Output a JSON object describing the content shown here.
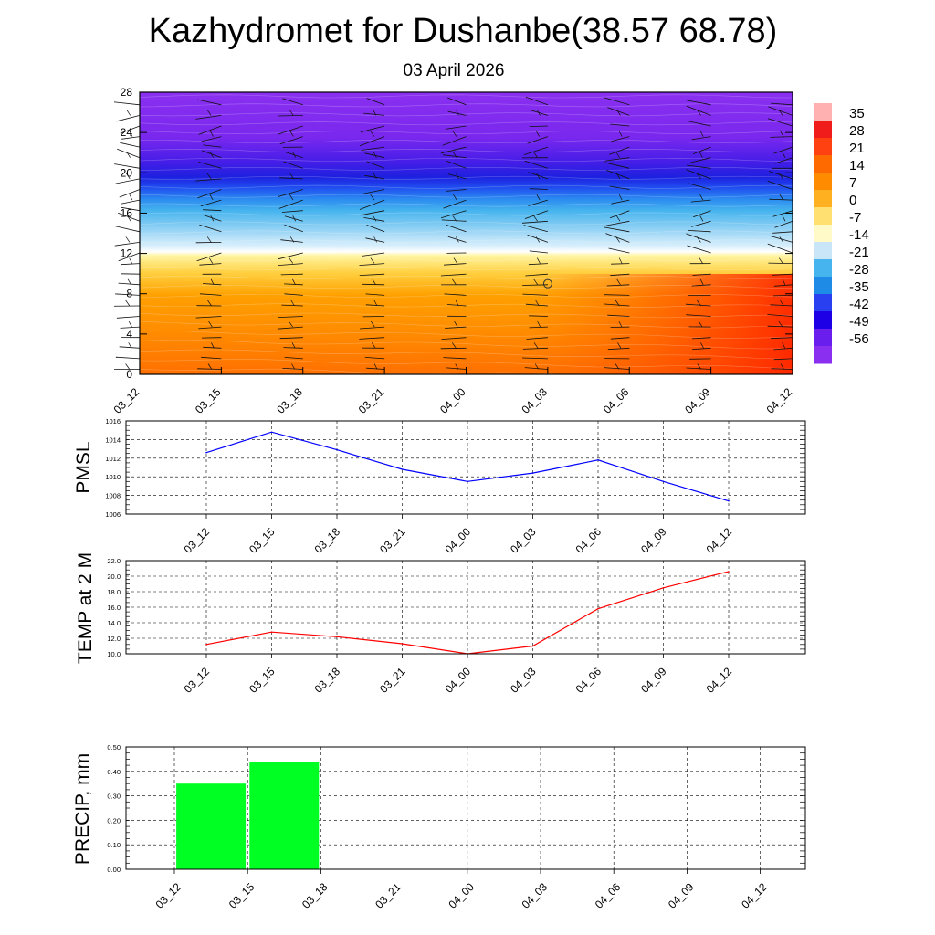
{
  "header": {
    "title": "Kazhydromet for Dushanbe(38.57 68.78)",
    "date": "03 April 2026"
  },
  "chart_data": [
    {
      "type": "heatmap",
      "name": "temperature cross-section",
      "x_categories": [
        "03_12",
        "03_15",
        "03_18",
        "03_21",
        "04_00",
        "04_03",
        "04_06",
        "04_09",
        "04_12"
      ],
      "y_ticks": [
        0,
        4,
        8,
        12,
        16,
        20,
        24,
        28
      ],
      "ylim": [
        0,
        28
      ],
      "colorbar_labels": [
        "35",
        "28",
        "21",
        "14",
        "7",
        "0",
        "-7",
        "-14",
        "-21",
        "-28",
        "-35",
        "-42",
        "-49",
        "-56"
      ],
      "colorbar_colors": [
        "#ffb0b0",
        "#f01c1c",
        "#ff4010",
        "#ff6a00",
        "#ff8c00",
        "#ffb020",
        "#ffe070",
        "#fffac8",
        "#c8e6f8",
        "#46b4ee",
        "#1e8ce6",
        "#2840f0",
        "#1e00e6",
        "#6a1eee",
        "#8a2ef0"
      ],
      "overlay": "wind barbs",
      "calm_circle": {
        "x": "04_03",
        "y": 9
      }
    },
    {
      "type": "line",
      "ylabel": "PMSL",
      "x_categories": [
        "03_12",
        "03_15",
        "03_18",
        "03_21",
        "04_00",
        "04_03",
        "04_06",
        "04_09",
        "04_12"
      ],
      "values": [
        1012.6,
        1014.8,
        1012.9,
        1010.8,
        1009.5,
        1010.4,
        1011.8,
        1009.5,
        1007.4
      ],
      "ylim": [
        1006,
        1016
      ],
      "y_ticks": [
        "1006",
        "1008",
        "1010",
        "1012",
        "1014",
        "1016"
      ],
      "color": "#0000ff",
      "grid": true
    },
    {
      "type": "line",
      "ylabel": "TEMP at 2 M",
      "x_categories": [
        "03_12",
        "03_15",
        "03_18",
        "03_21",
        "04_00",
        "04_03",
        "04_06",
        "04_09",
        "04_12"
      ],
      "values": [
        11.2,
        12.8,
        12.2,
        11.3,
        10.0,
        11.0,
        15.8,
        18.5,
        20.6
      ],
      "ylim": [
        10,
        22
      ],
      "y_ticks": [
        "10.0",
        "12.0",
        "14.0",
        "16.0",
        "18.0",
        "20.0",
        "22.0"
      ],
      "color": "#ff0000",
      "grid": true
    },
    {
      "type": "bar",
      "ylabel": "PRECIP, mm",
      "x_categories": [
        "03_12",
        "03_15",
        "03_18",
        "03_21",
        "04_00",
        "04_03",
        "04_06",
        "04_09",
        "04_12"
      ],
      "values": [
        0,
        0.35,
        0.44,
        0,
        0,
        0,
        0,
        0,
        0
      ],
      "ylim": [
        0,
        0.5
      ],
      "y_ticks": [
        "0.00",
        "0.10",
        "0.20",
        "0.30",
        "0.40",
        "0.50"
      ],
      "color": "#00ff22",
      "grid": true
    }
  ]
}
